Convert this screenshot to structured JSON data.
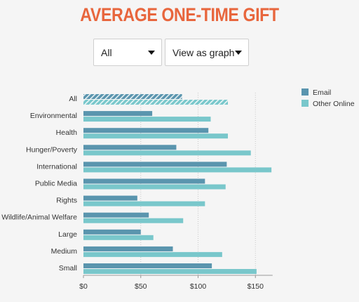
{
  "title": "AVERAGE ONE-TIME GIFT",
  "controls": {
    "filter": {
      "selected": "All"
    },
    "view": {
      "selected": "View as graph"
    }
  },
  "chart_data": {
    "type": "bar",
    "orientation": "horizontal",
    "categories": [
      "All",
      "Environmental",
      "Health",
      "Hunger/Poverty",
      "International",
      "Public Media",
      "Rights",
      "Wildlife/Animal Welfare",
      "Large",
      "Medium",
      "Small"
    ],
    "series": [
      {
        "name": "Email",
        "color": "#5a95ae",
        "values": [
          86,
          60,
          109,
          81,
          125,
          106,
          47,
          57,
          50,
          78,
          112
        ]
      },
      {
        "name": "Other Online",
        "color": "#79c7cb",
        "values": [
          126,
          111,
          126,
          146,
          164,
          124,
          106,
          87,
          61,
          121,
          151
        ]
      }
    ],
    "highlighted_category": "All",
    "xlim": [
      0,
      165
    ],
    "xticks": [
      0,
      50,
      100,
      150
    ],
    "xtick_labels": [
      "$0",
      "$50",
      "$100",
      "$150"
    ],
    "grid": "vertical-dotted",
    "legend_position": "top-right"
  }
}
